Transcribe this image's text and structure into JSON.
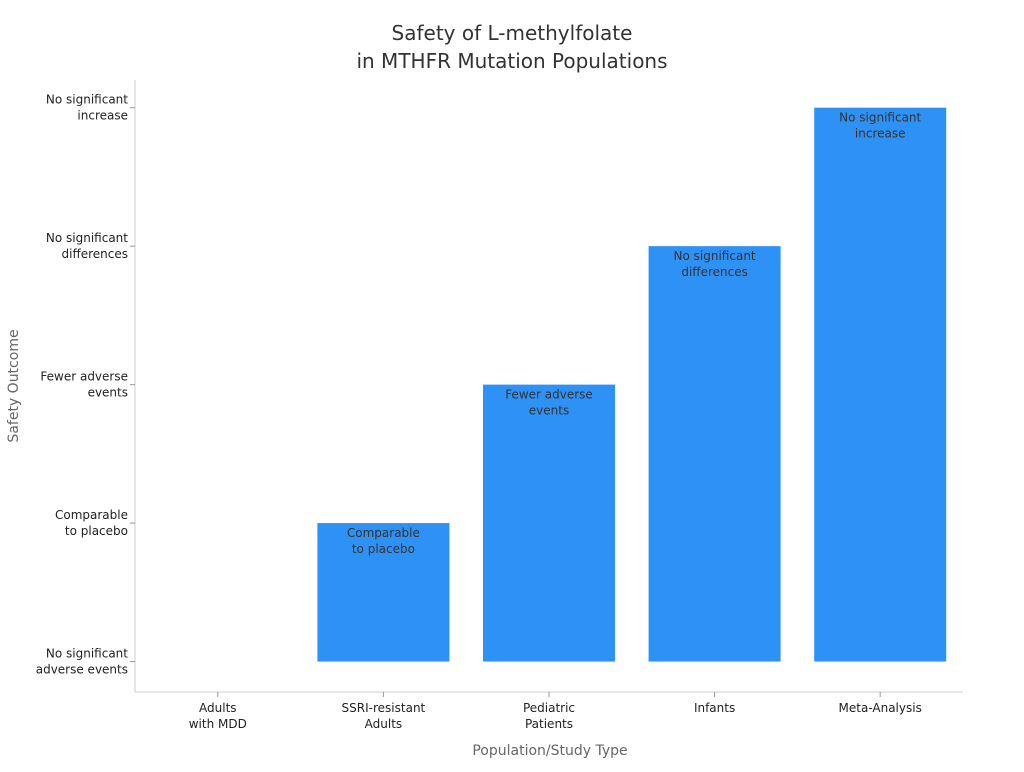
{
  "chart_data": {
    "type": "bar",
    "title": [
      "Safety of L-methylfolate",
      "in MTHFR Mutation Populations"
    ],
    "xlabel": "Population/Study Type",
    "ylabel": "Safety Outcome",
    "categories": [
      [
        "Adults",
        "with MDD"
      ],
      [
        "SSRI-resistant",
        "Adults"
      ],
      [
        "Pediatric",
        "Patients"
      ],
      [
        "Infants"
      ],
      [
        "Meta-Analysis"
      ]
    ],
    "y_tick_labels": [
      [
        "No significant",
        "adverse events"
      ],
      [
        "Comparable",
        "to placebo"
      ],
      [
        "Fewer adverse",
        "events"
      ],
      [
        "No significant",
        "differences"
      ],
      [
        "No significant",
        "increase"
      ]
    ],
    "values": [
      0,
      1,
      2,
      3,
      4
    ],
    "data_labels": [
      [
        "No significant",
        "adverse events"
      ],
      [
        "Comparable",
        "to placebo"
      ],
      [
        "Fewer adverse",
        "events"
      ],
      [
        "No significant",
        "differences"
      ],
      [
        "No significant",
        "increase"
      ]
    ],
    "ylim": [
      -0.22,
      4.2
    ],
    "grid": false,
    "bar_color": "#2e91f5"
  }
}
